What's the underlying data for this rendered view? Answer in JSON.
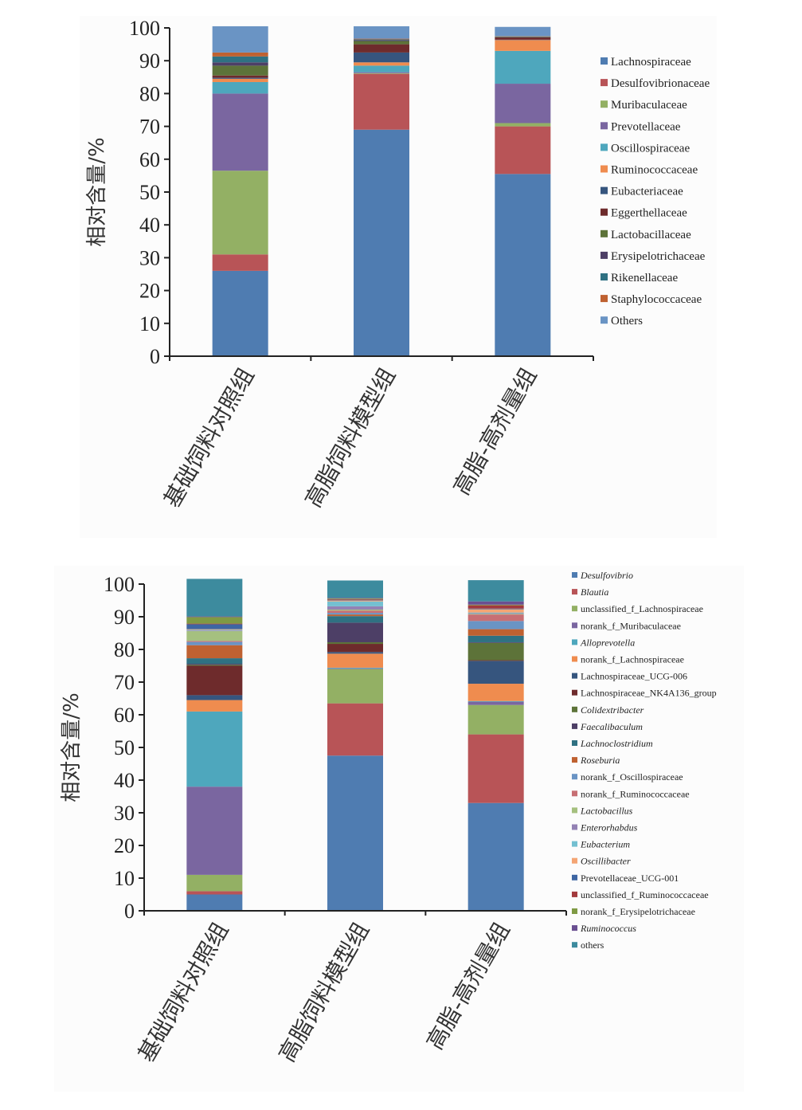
{
  "chart_data": [
    {
      "type": "bar",
      "stacked": true,
      "title": "",
      "xlabel": "",
      "ylabel": "相对含量/%",
      "ylim": [
        0,
        100
      ],
      "yticks": [
        0,
        10,
        20,
        30,
        40,
        50,
        60,
        70,
        80,
        90,
        100
      ],
      "grid": false,
      "legend_position": "right",
      "categories": [
        "基础饲料对照组",
        "高脂饲料模型组",
        "高脂-高剂量组"
      ],
      "series": [
        {
          "name": "Lachnospiraceae",
          "italic": false,
          "color": "#4f7cb1",
          "values": [
            26.0,
            69.0,
            55.5
          ]
        },
        {
          "name": "Desulfovibrionaceae",
          "italic": false,
          "color": "#b85457",
          "values": [
            5.0,
            17.0,
            14.5
          ]
        },
        {
          "name": "Muribaculaceae",
          "italic": false,
          "color": "#93b064",
          "values": [
            25.5,
            0.2,
            1.0
          ]
        },
        {
          "name": "Prevotellaceae",
          "italic": false,
          "color": "#7a66a0",
          "values": [
            23.5,
            0.3,
            12.0
          ]
        },
        {
          "name": "Oscillospiraceae",
          "italic": false,
          "color": "#4ea7bd",
          "values": [
            3.5,
            2.0,
            10.0
          ]
        },
        {
          "name": "Ruminococcaceae",
          "italic": false,
          "color": "#ef8c4f",
          "values": [
            1.0,
            1.0,
            3.3
          ]
        },
        {
          "name": "Eubacteriaceae",
          "italic": false,
          "color": "#36557e",
          "values": [
            0.3,
            3.0,
            0.1
          ]
        },
        {
          "name": "Eggerthellaceae",
          "italic": false,
          "color": "#6e2b2c",
          "values": [
            0.7,
            2.5,
            0.7
          ]
        },
        {
          "name": "Lactobacillaceae",
          "italic": false,
          "color": "#5d7339",
          "values": [
            3.0,
            1.0,
            0.1
          ]
        },
        {
          "name": "Erysipelotrichaceae",
          "italic": false,
          "color": "#4d3f66",
          "values": [
            1.0,
            0.3,
            0.1
          ]
        },
        {
          "name": "Rikenellaceae",
          "italic": false,
          "color": "#2f7182",
          "values": [
            1.8,
            0.2,
            0.1
          ]
        },
        {
          "name": "Staphylococcaceae",
          "italic": false,
          "color": "#bf6131",
          "values": [
            1.2,
            0.2,
            0.1
          ]
        },
        {
          "name": "Others",
          "italic": false,
          "color": "#6a94c4",
          "values": [
            8.0,
            3.8,
            2.8
          ]
        }
      ]
    },
    {
      "type": "bar",
      "stacked": true,
      "title": "",
      "xlabel": "",
      "ylabel": "相对含量/%",
      "ylim": [
        0,
        100
      ],
      "yticks": [
        0,
        10,
        20,
        30,
        40,
        50,
        60,
        70,
        80,
        90,
        100
      ],
      "grid": false,
      "legend_position": "right",
      "categories": [
        "基础饲料对照组",
        "高脂饲料模型组",
        "高脂-高剂量组"
      ],
      "series": [
        {
          "name": "Desulfovibrio",
          "italic": true,
          "color": "#4f7cb1",
          "values": [
            5.0,
            47.5,
            33.0
          ]
        },
        {
          "name": "Blautia",
          "italic": true,
          "color": "#b85457",
          "values": [
            1.0,
            16.0,
            21.0
          ]
        },
        {
          "name": "unclassified_f_Lachnospiraceae",
          "italic": false,
          "color": "#93b064",
          "values": [
            5.0,
            10.5,
            9.0
          ]
        },
        {
          "name": "norank_f_Muribaculaceae",
          "italic": false,
          "color": "#7a66a0",
          "values": [
            27.0,
            0.2,
            1.0
          ]
        },
        {
          "name": "Alloprevotella",
          "italic": true,
          "color": "#4ea7bd",
          "values": [
            23.0,
            0.2,
            0.2
          ]
        },
        {
          "name": "norank_f_Lachnospiraceae",
          "italic": false,
          "color": "#ef8c4f",
          "values": [
            3.5,
            4.3,
            5.3
          ]
        },
        {
          "name": "Lachnospiraceae_UCG-006",
          "italic": false,
          "color": "#36557e",
          "values": [
            1.5,
            0.5,
            7.0
          ]
        },
        {
          "name": "Lachnospiraceae_NK4A136_group",
          "italic": false,
          "color": "#6e2b2c",
          "values": [
            9.0,
            2.5,
            0.2
          ]
        },
        {
          "name": "Colidextribacter",
          "italic": true,
          "color": "#5d7339",
          "values": [
            0.3,
            0.5,
            5.3
          ]
        },
        {
          "name": "Faecalibaculum",
          "italic": true,
          "color": "#4d3f66",
          "values": [
            0.3,
            6.0,
            0.2
          ]
        },
        {
          "name": "Lachnoclostridium",
          "italic": true,
          "color": "#2f7182",
          "values": [
            1.7,
            2.0,
            2.0
          ]
        },
        {
          "name": "Roseburia",
          "italic": true,
          "color": "#bf6131",
          "values": [
            4.0,
            0.5,
            2.0
          ]
        },
        {
          "name": "norank_f_Oscillospiraceae",
          "italic": false,
          "color": "#6a94c4",
          "values": [
            1.0,
            0.5,
            2.5
          ]
        },
        {
          "name": "norank_f_Ruminococcaceae",
          "italic": false,
          "color": "#c76f74",
          "values": [
            0.3,
            0.7,
            2.0
          ]
        },
        {
          "name": "Lactobacillus",
          "italic": true,
          "color": "#a5c07f",
          "values": [
            3.0,
            0.3,
            0.2
          ]
        },
        {
          "name": "Enterorhabdus",
          "italic": true,
          "color": "#9382b4",
          "values": [
            0.2,
            1.0,
            0.2
          ]
        },
        {
          "name": "Eubacterium",
          "italic": true,
          "color": "#74c0d1",
          "values": [
            0.2,
            1.5,
            0.2
          ]
        },
        {
          "name": "Oscillibacter",
          "italic": true,
          "color": "#f4a574",
          "values": [
            0.2,
            0.3,
            1.0
          ]
        },
        {
          "name": "Prevotellaceae_UCG-001",
          "italic": false,
          "color": "#3e66a3",
          "values": [
            1.5,
            0.2,
            0.2
          ]
        },
        {
          "name": "unclassified_f_Ruminococcaceae",
          "italic": false,
          "color": "#a33a3d",
          "values": [
            0.2,
            0.2,
            1.0
          ]
        },
        {
          "name": "norank_f_Erysipelotrichaceae",
          "italic": false,
          "color": "#7f9a44",
          "values": [
            2.0,
            0.2,
            0.2
          ]
        },
        {
          "name": "Ruminococcus",
          "italic": true,
          "color": "#6a4f91",
          "values": [
            0.2,
            0.2,
            1.0
          ]
        },
        {
          "name": "others",
          "italic": false,
          "color": "#3d8b9e",
          "values": [
            11.5,
            5.3,
            6.5
          ]
        }
      ]
    }
  ]
}
